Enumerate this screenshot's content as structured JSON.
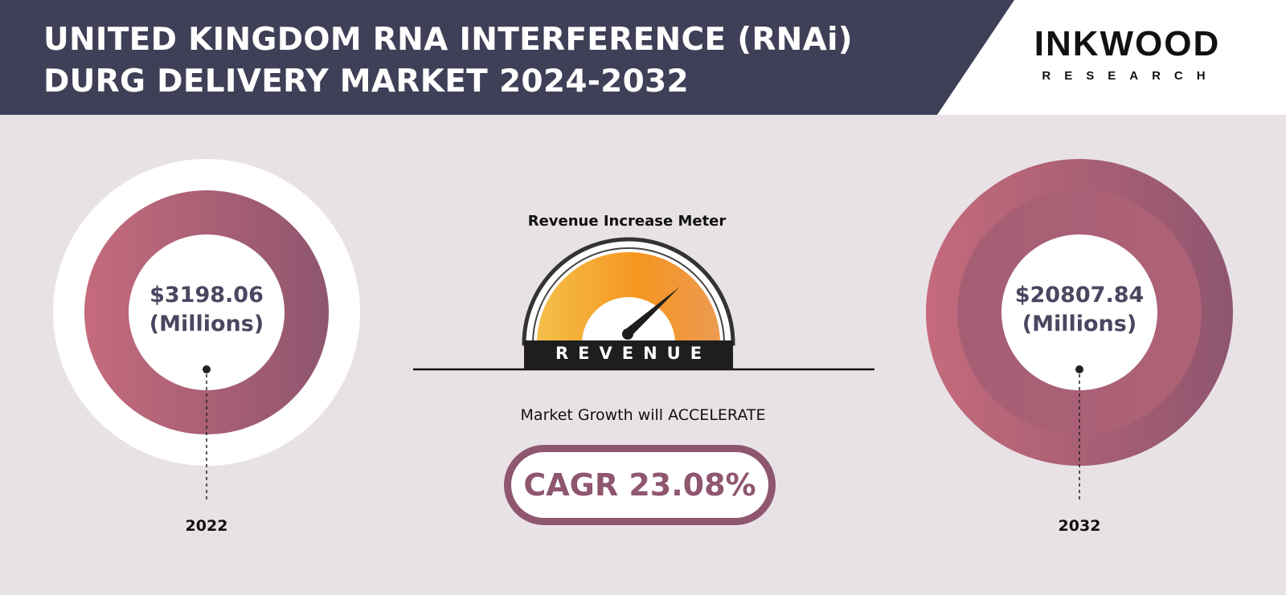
{
  "header": {
    "title_line1": "UNITED KINGDOM RNA INTERFERENCE (RNAi)",
    "title_line2": "DURG DELIVERY MARKET 2024-2032"
  },
  "logo": {
    "name": "INKWOOD",
    "sub": "RESEARCH"
  },
  "left_circle": {
    "value": "$3198.06",
    "unit": "(Millions)",
    "year": "2022"
  },
  "right_circle": {
    "value": "$20807.84",
    "unit": "(Millions)",
    "year": "2032"
  },
  "meter": {
    "title": "Revenue Increase Meter",
    "label": "REVENUE"
  },
  "growth": {
    "text": "Market Growth will ACCELERATE",
    "cagr": "CAGR 23.08%"
  },
  "colors": {
    "header_bg": "#3f3f57",
    "background": "#e8e2e6",
    "ring_light": "#c56a7c",
    "ring_dark": "#8f566f",
    "gauge_light": "#f4c04a",
    "gauge_dark": "#f5961f",
    "value_text": "#494760"
  }
}
